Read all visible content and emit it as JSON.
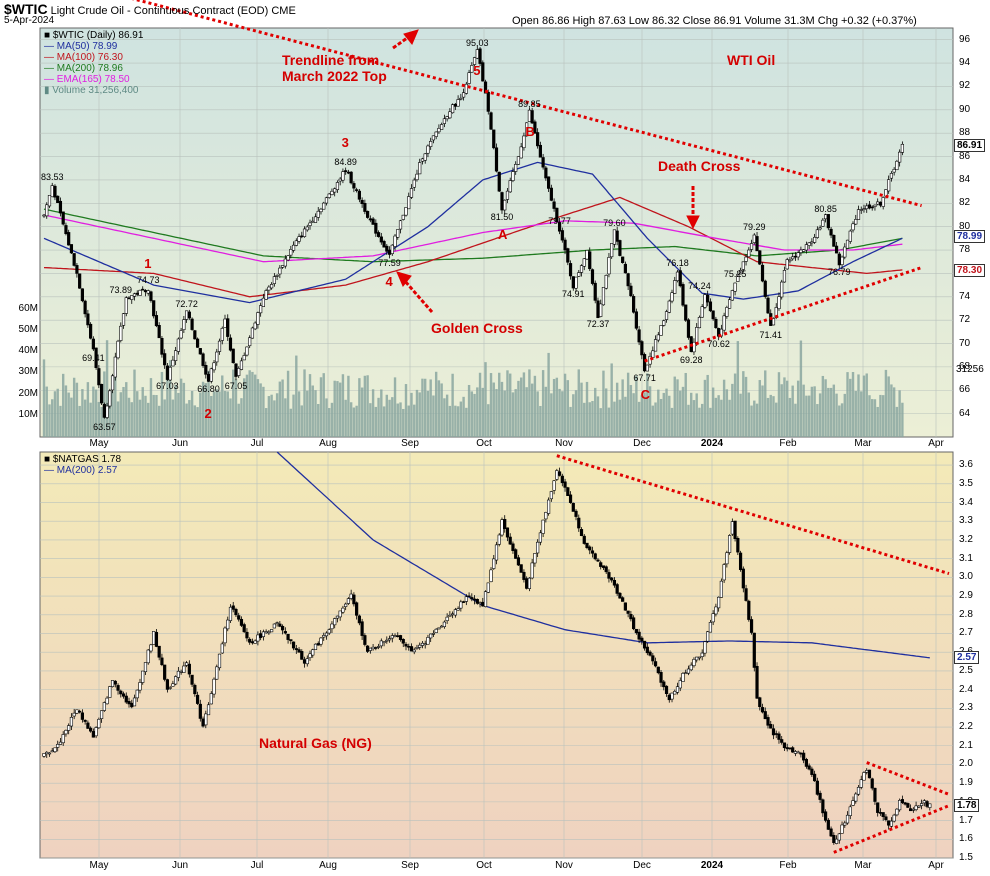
{
  "header": {
    "symbol_title": "$WTIC",
    "subtitle": "Light Crude Oil - Continuous Contract (EOD)",
    "exchange": "CME",
    "date": "5-Apr-2024",
    "ohlc": "Open 86.86  High 87.63  Low 86.32  Close 86.91  Volume 31.3M  Chg +0.32 (+0.37%)"
  },
  "top_legend": [
    "$WTIC (Daily) 86.91",
    "MA(50) 78.99",
    "MA(100) 76.30",
    "MA(200) 78.96",
    "EMA(165) 78.50",
    "Volume 31,256,400"
  ],
  "bottom_legend": [
    "$NATGAS 1.78",
    "MA(200) 2.57"
  ],
  "annotations": {
    "trendline": "Trendline from\nMarch 2022 Top",
    "wti": "WTI Oil",
    "death_cross": "Death Cross",
    "golden_cross": "Golden Cross",
    "natgas": "Natural Gas (NG)"
  },
  "colors": {
    "ma50": "#1f2f9f",
    "ma100": "#c0141c",
    "ma200": "#1f7a1f",
    "ema165": "#e01ee0",
    "volume": "#8aa6a0",
    "annotation": "#e00000",
    "top_bg_top": "#cfe3e0",
    "top_bg_bottom": "#ecefd6",
    "bottom_bg_top": "#f3eab8",
    "bottom_bg_bottom": "#efd2c0"
  },
  "chart_data": [
    {
      "type": "candlestick",
      "title": "$WTIC (Daily)",
      "x_labels": [
        "May",
        "Jun",
        "Jul",
        "Aug",
        "Sep",
        "Oct",
        "Nov",
        "Dec",
        "2024",
        "Feb",
        "Mar",
        "Apr"
      ],
      "ylim": [
        62,
        97
      ],
      "y_ticks": [
        64,
        66,
        68,
        70,
        72,
        74,
        76,
        78,
        80,
        82,
        84,
        86,
        88,
        90,
        92,
        94,
        96
      ],
      "volume_ticks": [
        "10M",
        "20M",
        "30M",
        "40M",
        "50M",
        "60M"
      ],
      "last_value": "86.91",
      "right_tags": [
        "78.99",
        "78.30",
        "31256"
      ],
      "series_anchors": [
        {
          "i": 0,
          "v": 81
        },
        {
          "i": 3,
          "v": 83.53
        },
        {
          "i": 12,
          "v": 76
        },
        {
          "i": 18,
          "v": 69.41
        },
        {
          "i": 22,
          "v": 63.57
        },
        {
          "i": 30,
          "v": 73.89
        },
        {
          "i": 38,
          "v": 74.73
        },
        {
          "i": 45,
          "v": 67.03
        },
        {
          "i": 52,
          "v": 72.72
        },
        {
          "i": 60,
          "v": 66.8
        },
        {
          "i": 66,
          "v": 72
        },
        {
          "i": 70,
          "v": 67.05
        },
        {
          "i": 80,
          "v": 74
        },
        {
          "i": 90,
          "v": 78
        },
        {
          "i": 102,
          "v": 82
        },
        {
          "i": 110,
          "v": 84.89
        },
        {
          "i": 120,
          "v": 80
        },
        {
          "i": 126,
          "v": 77.59
        },
        {
          "i": 138,
          "v": 86
        },
        {
          "i": 148,
          "v": 90
        },
        {
          "i": 152,
          "v": 91
        },
        {
          "i": 158,
          "v": 95.03
        },
        {
          "i": 162,
          "v": 90
        },
        {
          "i": 167,
          "v": 81.5
        },
        {
          "i": 173,
          "v": 86
        },
        {
          "i": 177,
          "v": 89.85
        },
        {
          "i": 183,
          "v": 84
        },
        {
          "i": 188,
          "v": 79.77
        },
        {
          "i": 193,
          "v": 74.91
        },
        {
          "i": 198,
          "v": 78
        },
        {
          "i": 202,
          "v": 72.37
        },
        {
          "i": 208,
          "v": 79.6
        },
        {
          "i": 214,
          "v": 74
        },
        {
          "i": 219,
          "v": 67.71
        },
        {
          "i": 226,
          "v": 72
        },
        {
          "i": 231,
          "v": 76.18
        },
        {
          "i": 236,
          "v": 69.28
        },
        {
          "i": 241,
          "v": 74.24
        },
        {
          "i": 246,
          "v": 70.62
        },
        {
          "i": 252,
          "v": 75.25
        },
        {
          "i": 259,
          "v": 79.29
        },
        {
          "i": 265,
          "v": 71.41
        },
        {
          "i": 271,
          "v": 77
        },
        {
          "i": 279,
          "v": 78.5
        },
        {
          "i": 285,
          "v": 80.85
        },
        {
          "i": 290,
          "v": 76.79
        },
        {
          "i": 297,
          "v": 81.5
        },
        {
          "i": 305,
          "v": 82
        },
        {
          "i": 313,
          "v": 86.91
        }
      ],
      "ma_anchors": {
        "ma50": [
          {
            "i": 0,
            "v": 79
          },
          {
            "i": 40,
            "v": 75
          },
          {
            "i": 75,
            "v": 73.5
          },
          {
            "i": 110,
            "v": 75.5
          },
          {
            "i": 140,
            "v": 80
          },
          {
            "i": 160,
            "v": 84
          },
          {
            "i": 180,
            "v": 85.5
          },
          {
            "i": 200,
            "v": 84.5
          },
          {
            "i": 220,
            "v": 79
          },
          {
            "i": 240,
            "v": 74.3
          },
          {
            "i": 255,
            "v": 73.8
          },
          {
            "i": 275,
            "v": 74.5
          },
          {
            "i": 295,
            "v": 77
          },
          {
            "i": 313,
            "v": 79
          }
        ],
        "ma100": [
          {
            "i": 0,
            "v": 76.5
          },
          {
            "i": 40,
            "v": 76
          },
          {
            "i": 75,
            "v": 74
          },
          {
            "i": 110,
            "v": 75
          },
          {
            "i": 140,
            "v": 77
          },
          {
            "i": 165,
            "v": 79
          },
          {
            "i": 190,
            "v": 81
          },
          {
            "i": 210,
            "v": 82.5
          },
          {
            "i": 235,
            "v": 80
          },
          {
            "i": 260,
            "v": 77
          },
          {
            "i": 280,
            "v": 76.5
          },
          {
            "i": 300,
            "v": 76
          },
          {
            "i": 313,
            "v": 76.3
          }
        ],
        "ma200": [
          {
            "i": 0,
            "v": 81.5
          },
          {
            "i": 40,
            "v": 79.5
          },
          {
            "i": 80,
            "v": 77.5
          },
          {
            "i": 120,
            "v": 77
          },
          {
            "i": 160,
            "v": 77.3
          },
          {
            "i": 200,
            "v": 78
          },
          {
            "i": 230,
            "v": 78.3
          },
          {
            "i": 260,
            "v": 77.5
          },
          {
            "i": 290,
            "v": 78
          },
          {
            "i": 313,
            "v": 79
          }
        ],
        "ema165": [
          {
            "i": 0,
            "v": 81
          },
          {
            "i": 40,
            "v": 79
          },
          {
            "i": 80,
            "v": 77
          },
          {
            "i": 120,
            "v": 77.5
          },
          {
            "i": 160,
            "v": 79.5
          },
          {
            "i": 190,
            "v": 80.5
          },
          {
            "i": 215,
            "v": 80.3
          },
          {
            "i": 245,
            "v": 79
          },
          {
            "i": 270,
            "v": 78
          },
          {
            "i": 295,
            "v": 78
          },
          {
            "i": 313,
            "v": 78.5
          }
        ]
      },
      "trendlines": [
        {
          "from": {
            "i": 0,
            "v": 101.5
          },
          "to": {
            "i": 320,
            "v": 81.8
          },
          "label": "Trendline from March 2022 Top"
        },
        {
          "from": {
            "i": 219,
            "v": 68.5
          },
          "to": {
            "i": 320,
            "v": 76.5
          }
        }
      ],
      "price_labels": [
        {
          "text": "83.53",
          "i": 3,
          "v": 83.53,
          "pos": "above"
        },
        {
          "text": "73.89",
          "i": 28,
          "v": 73.89,
          "pos": "above"
        },
        {
          "text": "74.73",
          "i": 38,
          "v": 74.73,
          "pos": "above"
        },
        {
          "text": "69.41",
          "i": 18,
          "v": 69.41,
          "pos": "below"
        },
        {
          "text": "63.57",
          "i": 22,
          "v": 63.57,
          "pos": "below"
        },
        {
          "text": "67.03",
          "i": 45,
          "v": 67.03,
          "pos": "below"
        },
        {
          "text": "66.80",
          "i": 60,
          "v": 66.8,
          "pos": "below"
        },
        {
          "text": "72.72",
          "i": 52,
          "v": 72.72,
          "pos": "above"
        },
        {
          "text": "67.05",
          "i": 70,
          "v": 67.05,
          "pos": "below"
        },
        {
          "text": "84.89",
          "i": 110,
          "v": 84.89,
          "pos": "above"
        },
        {
          "text": "77.59",
          "i": 126,
          "v": 77.59,
          "pos": "below"
        },
        {
          "text": "95.03",
          "i": 158,
          "v": 95.03,
          "pos": "above"
        },
        {
          "text": "81.50",
          "i": 167,
          "v": 81.5,
          "pos": "below"
        },
        {
          "text": "89.85",
          "i": 177,
          "v": 89.85,
          "pos": "above"
        },
        {
          "text": "79.77",
          "i": 188,
          "v": 79.77,
          "pos": "above"
        },
        {
          "text": "74.91",
          "i": 193,
          "v": 74.91,
          "pos": "below"
        },
        {
          "text": "72.37",
          "i": 202,
          "v": 72.37,
          "pos": "below"
        },
        {
          "text": "79.60",
          "i": 208,
          "v": 79.6,
          "pos": "above"
        },
        {
          "text": "67.71",
          "i": 219,
          "v": 67.71,
          "pos": "below"
        },
        {
          "text": "76.18",
          "i": 231,
          "v": 76.18,
          "pos": "above"
        },
        {
          "text": "74.24",
          "i": 239,
          "v": 74.24,
          "pos": "above"
        },
        {
          "text": "75.25",
          "i": 252,
          "v": 75.25,
          "pos": "above"
        },
        {
          "text": "69.28",
          "i": 236,
          "v": 69.28,
          "pos": "below"
        },
        {
          "text": "70.62",
          "i": 246,
          "v": 70.62,
          "pos": "below"
        },
        {
          "text": "79.29",
          "i": 259,
          "v": 79.29,
          "pos": "above"
        },
        {
          "text": "71.41",
          "i": 265,
          "v": 71.41,
          "pos": "below"
        },
        {
          "text": "80.85",
          "i": 285,
          "v": 80.85,
          "pos": "above"
        },
        {
          "text": "76.79",
          "i": 290,
          "v": 76.79,
          "pos": "below"
        }
      ],
      "wave_labels": [
        {
          "text": "1",
          "i": 38,
          "v": 76.8
        },
        {
          "text": "2",
          "i": 60,
          "v": 64
        },
        {
          "text": "3",
          "i": 110,
          "v": 87.2
        },
        {
          "text": "4",
          "i": 126,
          "v": 75.3
        },
        {
          "text": "5",
          "i": 158,
          "v": 93.3
        },
        {
          "text": "A",
          "i": 167,
          "v": 79.3
        },
        {
          "text": "B",
          "i": 177,
          "v": 88.1
        },
        {
          "text": "C",
          "i": 219,
          "v": 65.6
        }
      ]
    },
    {
      "type": "candlestick",
      "title": "$NATGAS",
      "x_labels": [
        "May",
        "Jun",
        "Jul",
        "Aug",
        "Sep",
        "Oct",
        "Nov",
        "Dec",
        "2024",
        "Feb",
        "Mar",
        "Apr"
      ],
      "ylim": [
        1.5,
        3.67
      ],
      "y_ticks": [
        1.5,
        1.6,
        1.7,
        1.8,
        1.9,
        2.0,
        2.1,
        2.2,
        2.3,
        2.4,
        2.5,
        2.6,
        2.7,
        2.8,
        2.9,
        3.0,
        3.1,
        3.2,
        3.3,
        3.4,
        3.5,
        3.6
      ],
      "last_value": "1.78",
      "right_tags": [
        "2.57"
      ],
      "series_anchors": [
        {
          "i": 0,
          "v": 2.05
        },
        {
          "i": 5,
          "v": 2.1
        },
        {
          "i": 12,
          "v": 2.3
        },
        {
          "i": 18,
          "v": 2.15
        },
        {
          "i": 25,
          "v": 2.45
        },
        {
          "i": 32,
          "v": 2.3
        },
        {
          "i": 40,
          "v": 2.7
        },
        {
          "i": 45,
          "v": 2.4
        },
        {
          "i": 52,
          "v": 2.55
        },
        {
          "i": 58,
          "v": 2.2
        },
        {
          "i": 62,
          "v": 2.45
        },
        {
          "i": 68,
          "v": 2.85
        },
        {
          "i": 75,
          "v": 2.65
        },
        {
          "i": 85,
          "v": 2.75
        },
        {
          "i": 95,
          "v": 2.55
        },
        {
          "i": 105,
          "v": 2.75
        },
        {
          "i": 112,
          "v": 2.9
        },
        {
          "i": 118,
          "v": 2.6
        },
        {
          "i": 128,
          "v": 2.7
        },
        {
          "i": 135,
          "v": 2.6
        },
        {
          "i": 142,
          "v": 2.7
        },
        {
          "i": 148,
          "v": 2.8
        },
        {
          "i": 155,
          "v": 2.9
        },
        {
          "i": 160,
          "v": 2.85
        },
        {
          "i": 167,
          "v": 3.3
        },
        {
          "i": 172,
          "v": 3.1
        },
        {
          "i": 176,
          "v": 2.95
        },
        {
          "i": 182,
          "v": 3.3
        },
        {
          "i": 187,
          "v": 3.58
        },
        {
          "i": 192,
          "v": 3.4
        },
        {
          "i": 198,
          "v": 3.15
        },
        {
          "i": 204,
          "v": 3.05
        },
        {
          "i": 210,
          "v": 2.9
        },
        {
          "i": 216,
          "v": 2.7
        },
        {
          "i": 222,
          "v": 2.55
        },
        {
          "i": 228,
          "v": 2.35
        },
        {
          "i": 234,
          "v": 2.5
        },
        {
          "i": 240,
          "v": 2.6
        },
        {
          "i": 246,
          "v": 2.9
        },
        {
          "i": 251,
          "v": 3.3
        },
        {
          "i": 255,
          "v": 2.95
        },
        {
          "i": 258,
          "v": 2.7
        },
        {
          "i": 260,
          "v": 2.35
        },
        {
          "i": 264,
          "v": 2.2
        },
        {
          "i": 270,
          "v": 2.1
        },
        {
          "i": 276,
          "v": 2.05
        },
        {
          "i": 280,
          "v": 1.95
        },
        {
          "i": 284,
          "v": 1.75
        },
        {
          "i": 288,
          "v": 1.58
        },
        {
          "i": 292,
          "v": 1.7
        },
        {
          "i": 296,
          "v": 1.85
        },
        {
          "i": 300,
          "v": 1.98
        },
        {
          "i": 304,
          "v": 1.75
        },
        {
          "i": 308,
          "v": 1.68
        },
        {
          "i": 312,
          "v": 1.8
        },
        {
          "i": 316,
          "v": 1.75
        },
        {
          "i": 320,
          "v": 1.8
        },
        {
          "i": 323,
          "v": 1.78
        }
      ],
      "ma_anchors": {
        "ma200": [
          {
            "i": 85,
            "v": 3.67
          },
          {
            "i": 120,
            "v": 3.2
          },
          {
            "i": 160,
            "v": 2.85
          },
          {
            "i": 190,
            "v": 2.72
          },
          {
            "i": 220,
            "v": 2.65
          },
          {
            "i": 250,
            "v": 2.66
          },
          {
            "i": 280,
            "v": 2.65
          },
          {
            "i": 323,
            "v": 2.57
          }
        ]
      },
      "trendlines": [
        {
          "from": {
            "i": 187,
            "v": 3.65
          },
          "to": {
            "i": 330,
            "v": 3.02
          }
        },
        {
          "from": {
            "i": 288,
            "v": 1.53
          },
          "to": {
            "i": 330,
            "v": 1.78
          }
        },
        {
          "from": {
            "i": 300,
            "v": 2.01
          },
          "to": {
            "i": 330,
            "v": 1.84
          }
        }
      ]
    }
  ]
}
